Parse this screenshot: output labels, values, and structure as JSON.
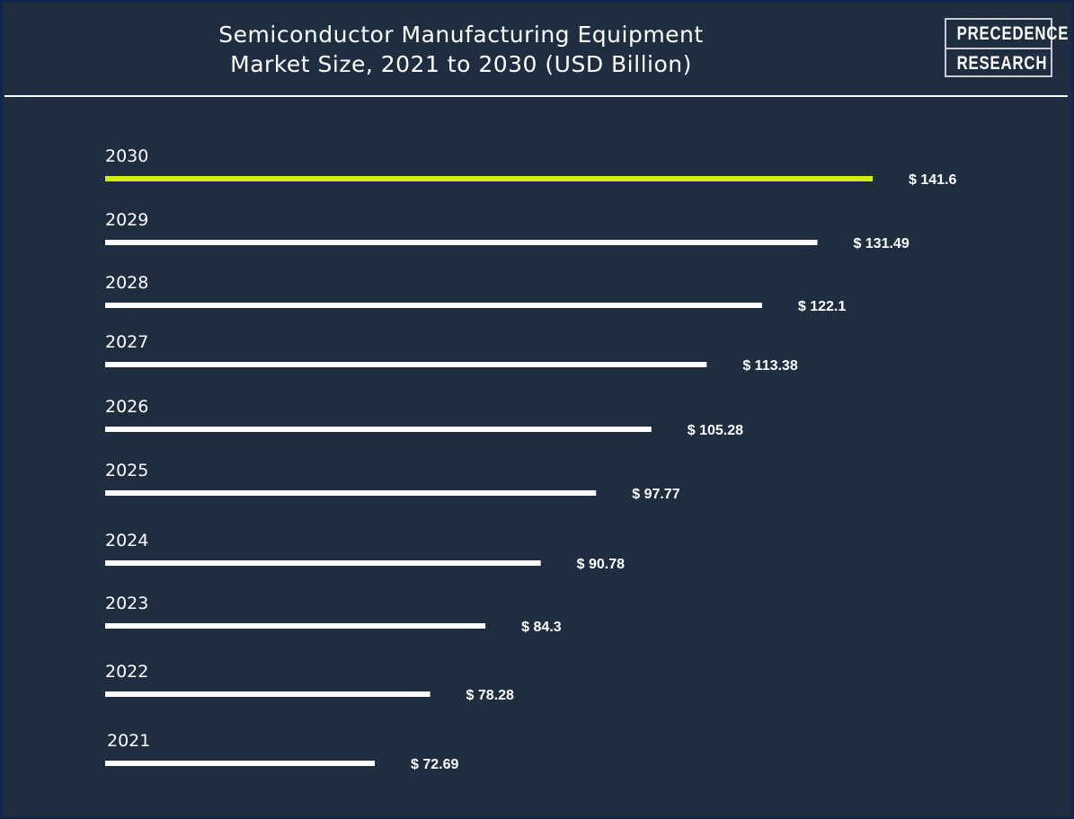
{
  "chart_data": {
    "type": "bar",
    "orientation": "horizontal",
    "title": "Semiconductor Manufacturing Equipment Market Size, 2021 to 2030 (USD Billion)",
    "title_lines": [
      "Semiconductor Manufacturing Equipment",
      "Market Size, 2021 to 2030 (USD Billion)"
    ],
    "categories": [
      "2030",
      "2029",
      "2028",
      "2027",
      "2026",
      "2025",
      "2024",
      "2023",
      "2022",
      "2021"
    ],
    "values": [
      141.6,
      131.49,
      122.1,
      113.38,
      105.28,
      97.77,
      90.78,
      84.3,
      78.28,
      72.69
    ],
    "value_labels": [
      "$ 141.6",
      "$ 131.49",
      "$ 122.1",
      "$ 113.38",
      "$ 105.28",
      "$ 97.77",
      "$ 90.78",
      "$ 84.3",
      "$ 78.28",
      "$ 72.69"
    ],
    "highlight_category": "2030",
    "grid": false,
    "colors": {
      "background": "#1e2d40",
      "bar": "#ffffff",
      "highlight": "#d4ec17",
      "border": "#0e2550"
    }
  },
  "logo": {
    "line1": "PRECEDENCE",
    "line2": "RESEARCH"
  }
}
